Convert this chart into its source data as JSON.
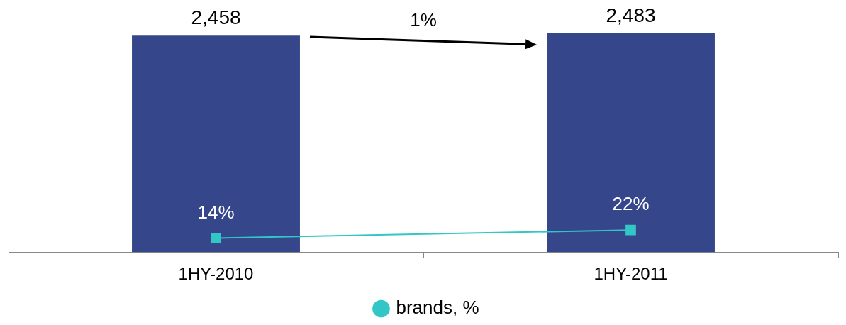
{
  "chart_data": {
    "type": "bar",
    "categories": [
      "1HY-2010",
      "1HY-2011"
    ],
    "series": [
      {
        "color": "#36468a",
        "values": [
          2458,
          2483
        ],
        "value_labels": [
          "2,458",
          "2,483"
        ]
      },
      {
        "type": "line",
        "name": "brands, %",
        "color": "#33c6c6",
        "axis": "y2",
        "values": [
          14,
          22
        ],
        "value_labels": [
          "14%",
          "22%"
        ]
      }
    ],
    "marker": "square",
    "legend": "bottom",
    "grid": false,
    "annotations": [
      "1%"
    ]
  }
}
